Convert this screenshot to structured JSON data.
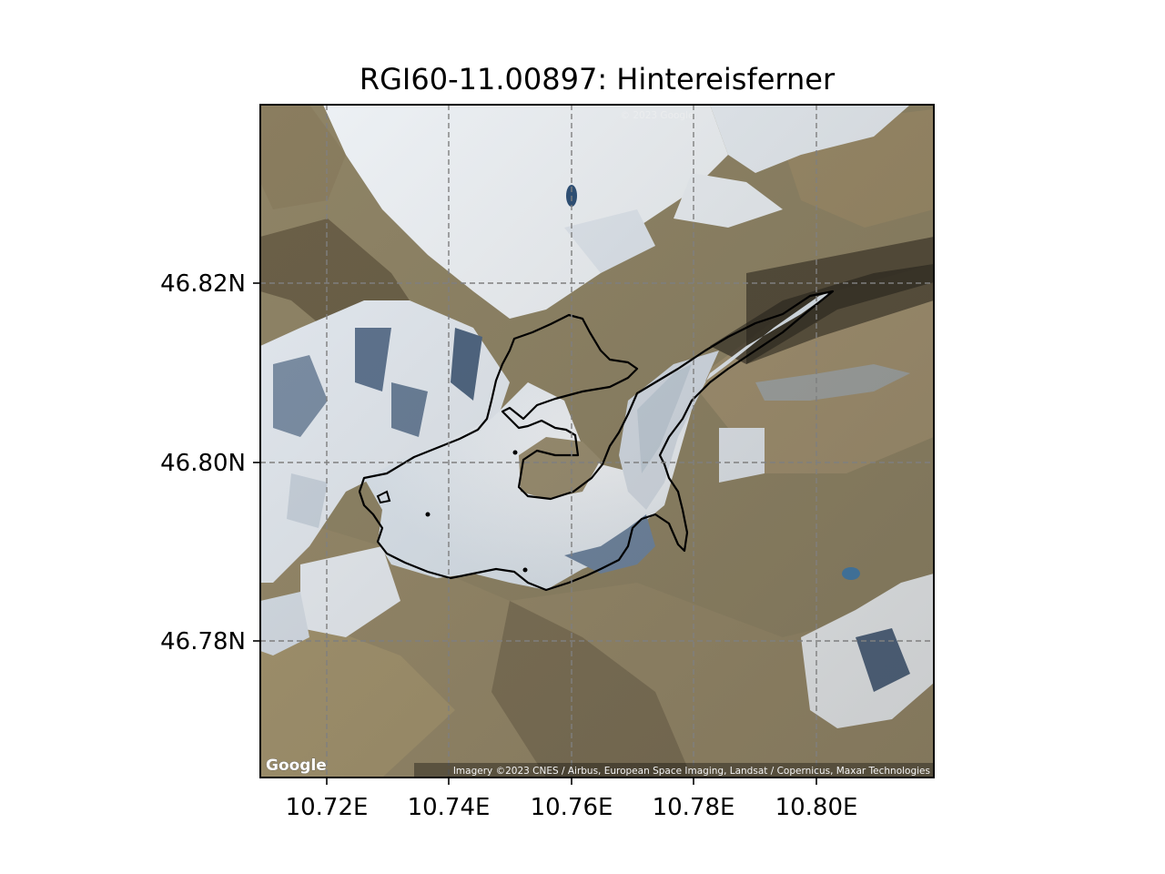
{
  "map": {
    "title": "RGI60-11.00897: Hintereisferner",
    "x_ticks": [
      "10.72E",
      "10.74E",
      "10.76E",
      "10.78E",
      "10.80E"
    ],
    "y_ticks": [
      "46.82N",
      "46.80N",
      "46.78N"
    ],
    "attribution": "Imagery ©2023 CNES / Airbus, European Space Imaging, Landsat / Copernicus, Maxar Technologies",
    "logo": "Google",
    "watermark": "© 2023 Google",
    "outline_color": "#000000",
    "grid": "dashed gray",
    "gridline_color": "#7f7f7f"
  }
}
